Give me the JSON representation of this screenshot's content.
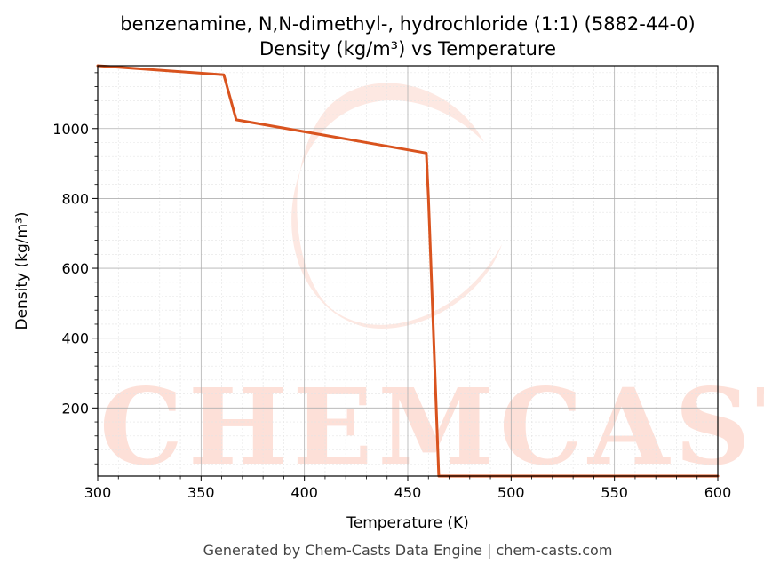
{
  "chart_data": {
    "type": "line",
    "title": "benzenamine, N,N-dimethyl-, hydrochloride (1:1) (5882-44-0)",
    "subtitle": "Density (kg/m³) vs Temperature",
    "xlabel": "Temperature (K)",
    "ylabel": "Density (kg/m³)",
    "xlim": [
      300,
      600
    ],
    "ylim": [
      5,
      1180
    ],
    "x_ticks": [
      300,
      350,
      400,
      450,
      500,
      550,
      600
    ],
    "y_ticks": [
      200,
      400,
      600,
      800,
      1000
    ],
    "grid": true,
    "series": [
      {
        "color": "#d9531e",
        "x": [
          300,
          361,
          367,
          459,
          460,
          465,
          600
        ],
        "y": [
          1180,
          1154,
          1025,
          930,
          800,
          5,
          5
        ]
      }
    ]
  },
  "watermark": {
    "text": "CHEMCASTS",
    "color": "#fde0d8"
  },
  "footer": "Generated by Chem-Casts Data Engine | chem-casts.com"
}
